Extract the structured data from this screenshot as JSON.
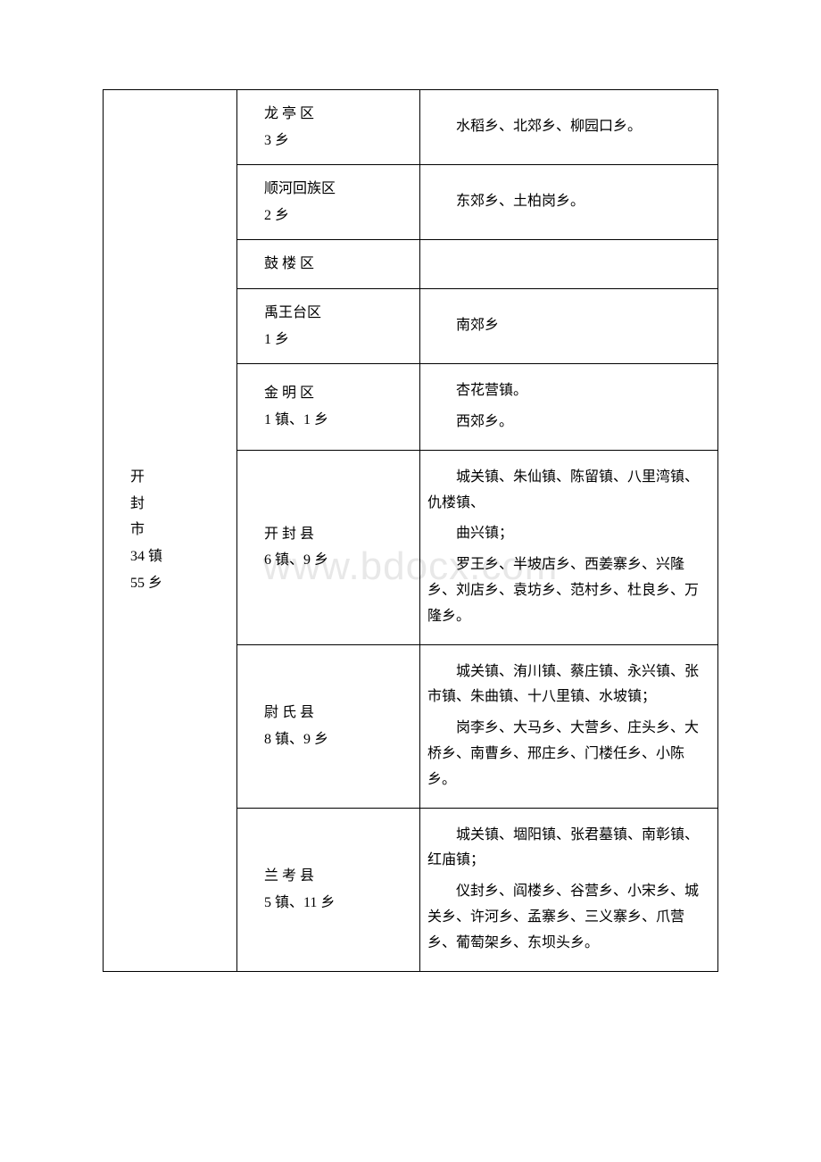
{
  "watermark": "www.bdocx.com",
  "city": {
    "name_lines": [
      "开",
      "封",
      "市"
    ],
    "stats1": "34 镇",
    "stats2": "55 乡"
  },
  "rows": [
    {
      "district_line1": "龙 亭 区",
      "district_line2": "3 乡",
      "details": [
        {
          "text": "水稻乡、北郊乡、柳园口乡。"
        }
      ]
    },
    {
      "district_line1": "顺河回族区",
      "district_line2": "2 乡",
      "details": [
        {
          "text": "东郊乡、土柏岗乡。"
        }
      ]
    },
    {
      "district_line1": "鼓 楼 区",
      "district_line2": "",
      "details": []
    },
    {
      "district_line1": "禹王台区",
      "district_line2": "1 乡",
      "details": [
        {
          "text": "南郊乡"
        }
      ]
    },
    {
      "district_line1": "金 明 区",
      "district_line2": "1 镇、1 乡",
      "details": [
        {
          "text": "杏花营镇。"
        },
        {
          "text": "西郊乡。"
        }
      ]
    },
    {
      "district_line1": "开 封 县",
      "district_line2": "6 镇、9 乡",
      "details": [
        {
          "text": "城关镇、朱仙镇、陈留镇、八里湾镇、仇楼镇、"
        },
        {
          "text": "曲兴镇；"
        },
        {
          "text": "罗王乡、半坡店乡、西姜寨乡、兴隆乡、刘店乡、袁坊乡、范村乡、杜良乡、万隆乡。"
        }
      ]
    },
    {
      "district_line1": "尉 氏 县",
      "district_line2": "8 镇、9 乡",
      "details": [
        {
          "text": "城关镇、洧川镇、蔡庄镇、永兴镇、张市镇、朱曲镇、十八里镇、水坡镇；"
        },
        {
          "text": "岗李乡、大马乡、大营乡、庄头乡、大桥乡、南曹乡、邢庄乡、门楼任乡、小陈乡。"
        }
      ]
    },
    {
      "district_line1": "兰 考 县",
      "district_line2": "5 镇、11 乡",
      "details": [
        {
          "text": "城关镇、堌阳镇、张君墓镇、南彰镇、红庙镇；"
        },
        {
          "text": "仪封乡、阎楼乡、谷营乡、小宋乡、城关乡、许河乡、孟寨乡、三义寨乡、爪营乡、葡萄架乡、东坝头乡。"
        }
      ]
    }
  ]
}
